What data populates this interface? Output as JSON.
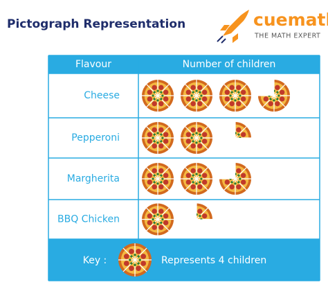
{
  "chart_data": {
    "type": "pictograph",
    "title": "Pictograph Representation",
    "brand": "cuemath",
    "tagline": "THE MATH EXPERT",
    "category_header": "Flavour",
    "value_header": "Number of children",
    "categories": [
      "Cheese",
      "Pepperoni",
      "Margherita",
      "BBQ Chicken"
    ],
    "values": [
      3.75,
      2.25,
      2.75,
      1.25
    ],
    "key_label": "Key :",
    "key_text": "Represents 4 children",
    "color": "#29abe2"
  }
}
